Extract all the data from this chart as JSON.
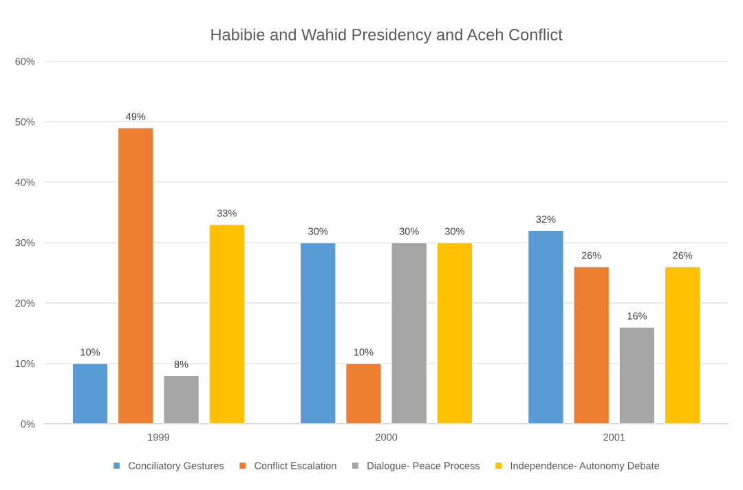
{
  "chart_data": {
    "type": "bar",
    "title": "Habibie and Wahid Presidency and Aceh Conflict",
    "categories": [
      "1999",
      "2000",
      "2001"
    ],
    "series": [
      {
        "name": "Conciliatory Gestures",
        "color": "#5b9bd5",
        "values": [
          10,
          30,
          32
        ],
        "value_labels": [
          "10%",
          "30%",
          "32%"
        ]
      },
      {
        "name": "Conflict Escalation",
        "color": "#ed7d31",
        "values": [
          49,
          10,
          26
        ],
        "value_labels": [
          "49%",
          "10%",
          "26%"
        ]
      },
      {
        "name": "Dialogue- Peace Process",
        "color": "#a5a5a5",
        "values": [
          8,
          30,
          16
        ],
        "value_labels": [
          "8%",
          "30%",
          "16%"
        ]
      },
      {
        "name": "Independence- Autonomy Debate",
        "color": "#ffc000",
        "values": [
          33,
          30,
          26
        ],
        "value_labels": [
          "33%",
          "30%",
          "26%"
        ]
      }
    ],
    "ylim": [
      0,
      60
    ],
    "yticks": [
      {
        "value": 0,
        "label": "0%"
      },
      {
        "value": 10,
        "label": "10%"
      },
      {
        "value": 20,
        "label": "20%"
      },
      {
        "value": 30,
        "label": "30%"
      },
      {
        "value": 40,
        "label": "40%"
      },
      {
        "value": 50,
        "label": "50%"
      },
      {
        "value": 60,
        "label": "60%"
      }
    ],
    "grid": "y",
    "legend": "bottom"
  }
}
